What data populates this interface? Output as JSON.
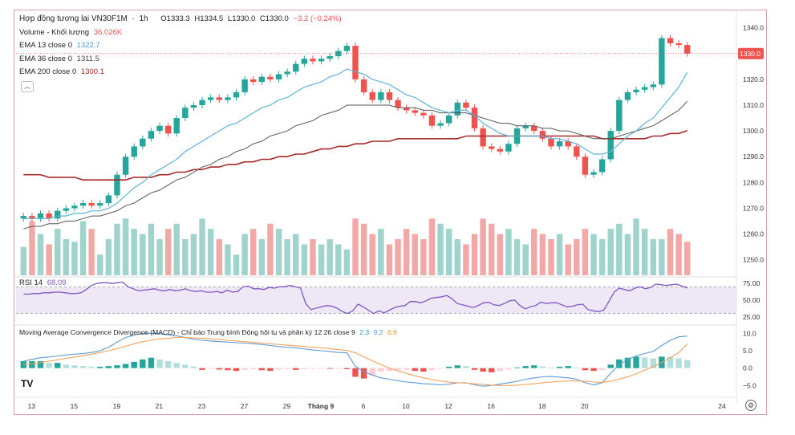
{
  "header": {
    "symbol": "Hợp đồng tương lai VN30F1M",
    "interval": "1h",
    "ohlc": {
      "o": "O1333.3",
      "h": "H1334.5",
      "l": "L1330.0",
      "c": "C1330.0",
      "chg": "−3.2 (−0.24%)"
    }
  },
  "legend": {
    "volume": {
      "label": "Volume - Khối lượng",
      "value": "36.026K"
    },
    "ema13": {
      "label": "EMA 13 close 0",
      "value": "1322.7"
    },
    "ema36": {
      "label": "EMA 36 close 0",
      "value": "1311.5"
    },
    "ema200": {
      "label": "EMA 200 close 0",
      "value": "1300.1"
    },
    "rsi": {
      "label": "RSI 14",
      "value": "68.09"
    },
    "macd": {
      "label": "Moving Average Convergence Divergence (MACD) - Chỉ báo Trung bình Động hội tụ và phân kỳ 12 26 close 9",
      "v1": "2.3",
      "v2": "9.2",
      "v3": "6.9"
    }
  },
  "price_tag": "1330.0",
  "colors": {
    "up": "#26a69a",
    "down": "#ef5350",
    "ema13": "#5fb3d9",
    "ema36": "#555555",
    "ema200": "#a52a2a",
    "rsi": "#7e57c2",
    "macd": "#5b9bd5",
    "signal": "#f4a15a"
  },
  "logo_text": "TV",
  "chart_data": [
    {
      "type": "candlestick",
      "y_ticks": [
        "1340.0",
        "1330.0",
        "1320.0",
        "1310.0",
        "1300.0",
        "1290.0",
        "1280.0",
        "1270.0",
        "1260.0",
        "1250.0"
      ],
      "ylim": [
        1244,
        1343
      ],
      "x_ticks": [
        "13",
        "15",
        "19",
        "21",
        "23",
        "27",
        "29",
        "Tháng 9",
        "6",
        "10",
        "12",
        "16",
        "18",
        "20",
        "24"
      ],
      "closes": [
        1267,
        1266,
        1268,
        1266,
        1269,
        1270,
        1271,
        1272,
        1271,
        1272,
        1275,
        1283,
        1290,
        1294,
        1297,
        1300,
        1302,
        1299,
        1305,
        1309,
        1310,
        1312,
        1313,
        1312,
        1313,
        1315,
        1320,
        1319,
        1321,
        1320,
        1322,
        1323,
        1326,
        1328,
        1327,
        1328,
        1329,
        1331,
        1333,
        1320,
        1315,
        1312,
        1315,
        1312,
        1309,
        1308,
        1307,
        1306,
        1302,
        1303,
        1306,
        1311,
        1309,
        1301,
        1294,
        1293,
        1292,
        1295,
        1301,
        1302,
        1300,
        1297,
        1294,
        1296,
        1294,
        1290,
        1283,
        1284,
        1289,
        1300,
        1312,
        1315,
        1316,
        1317,
        1318,
        1336,
        1334,
        1333.3,
        1330
      ],
      "volume_ylim": [
        1244,
        1270
      ],
      "volumes": [
        1255,
        1265,
        1260,
        1256,
        1262,
        1258,
        1257,
        1265,
        1262,
        1252,
        1258,
        1264,
        1266,
        1262,
        1260,
        1264,
        1258,
        1262,
        1264,
        1258,
        1260,
        1266,
        1262,
        1258,
        1256,
        1252,
        1260,
        1262,
        1258,
        1264,
        1262,
        1258,
        1260,
        1256,
        1258,
        1256,
        1258,
        1256,
        1254,
        1266,
        1264,
        1260,
        1262,
        1256,
        1258,
        1262,
        1260,
        1258,
        1266,
        1264,
        1262,
        1258,
        1256,
        1260,
        1266,
        1264,
        1260,
        1262,
        1258,
        1256,
        1262,
        1260,
        1258,
        1260,
        1256,
        1258,
        1262,
        1260,
        1258,
        1262,
        1264,
        1260,
        1266,
        1262,
        1258,
        1258,
        1262,
        1260,
        1257
      ],
      "ema13": [
        1266,
        1266,
        1266,
        1266,
        1267,
        1267,
        1268,
        1268,
        1269,
        1269,
        1270,
        1272,
        1275,
        1278,
        1280,
        1283,
        1285,
        1287,
        1289,
        1292,
        1294,
        1296,
        1298,
        1300,
        1302,
        1303,
        1305,
        1307,
        1309,
        1310,
        1312,
        1313,
        1315,
        1317,
        1318,
        1319,
        1321,
        1322,
        1324,
        1323,
        1322,
        1320,
        1319,
        1318,
        1316,
        1314,
        1313,
        1311,
        1309,
        1308,
        1307,
        1308,
        1308,
        1306,
        1303,
        1301,
        1299,
        1298,
        1298,
        1298,
        1298,
        1298,
        1297,
        1297,
        1296,
        1295,
        1293,
        1291,
        1291,
        1292,
        1295,
        1298,
        1300,
        1303,
        1305,
        1309,
        1313,
        1317,
        1322.7
      ],
      "ema36": [
        1262,
        1263,
        1263,
        1264,
        1264,
        1265,
        1265,
        1266,
        1267,
        1267,
        1268,
        1269,
        1271,
        1272,
        1274,
        1276,
        1277,
        1279,
        1281,
        1282,
        1284,
        1286,
        1287,
        1289,
        1290,
        1292,
        1293,
        1295,
        1296,
        1298,
        1299,
        1300,
        1302,
        1303,
        1304,
        1306,
        1307,
        1308,
        1310,
        1310,
        1310,
        1310,
        1310,
        1310,
        1309,
        1309,
        1309,
        1308,
        1308,
        1307,
        1307,
        1307,
        1307,
        1306,
        1305,
        1304,
        1303,
        1303,
        1302,
        1302,
        1302,
        1301,
        1301,
        1300,
        1300,
        1299,
        1298,
        1297,
        1297,
        1297,
        1298,
        1299,
        1300,
        1301,
        1302,
        1304,
        1306,
        1308,
        1311.5
      ],
      "ema200": [
        1283,
        1283,
        1283,
        1282,
        1282,
        1282,
        1282,
        1281,
        1281,
        1281,
        1281,
        1281,
        1281,
        1282,
        1282,
        1282,
        1283,
        1283,
        1284,
        1284,
        1285,
        1285,
        1286,
        1286,
        1287,
        1287,
        1288,
        1288,
        1289,
        1289,
        1290,
        1290,
        1291,
        1291,
        1292,
        1293,
        1293,
        1294,
        1294,
        1295,
        1295,
        1296,
        1296,
        1296,
        1297,
        1297,
        1297,
        1297,
        1297,
        1297,
        1297,
        1297,
        1298,
        1298,
        1298,
        1298,
        1298,
        1298,
        1298,
        1298,
        1298,
        1298,
        1298,
        1298,
        1298,
        1298,
        1298,
        1298,
        1297,
        1297,
        1297,
        1297,
        1297,
        1297,
        1298,
        1298,
        1299,
        1299,
        1300.1
      ]
    },
    {
      "type": "line",
      "name": "RSI 14",
      "ylim": [
        20,
        80
      ],
      "y_ticks": [
        "75.00",
        "50.00",
        "25.00"
      ],
      "band": [
        30,
        70
      ],
      "values": [
        59,
        59,
        60,
        60,
        61,
        61,
        62,
        62,
        61,
        60,
        60,
        61,
        66,
        72,
        75,
        76,
        76,
        75,
        76,
        77,
        70,
        67,
        64,
        65,
        66,
        67,
        65,
        64,
        66,
        64,
        65,
        67,
        64,
        63,
        64,
        62,
        62,
        63,
        61,
        65,
        62,
        63,
        70,
        71,
        67,
        67,
        66,
        69,
        68,
        70,
        70,
        72,
        70,
        68,
        45,
        36,
        38,
        40,
        42,
        41,
        38,
        33,
        30,
        34,
        44,
        40,
        35,
        30,
        34,
        31,
        35,
        39,
        41,
        42,
        48,
        48,
        46,
        49,
        53,
        54,
        55,
        57,
        52,
        45,
        43,
        41,
        39,
        42,
        46,
        47,
        43,
        42,
        45,
        49,
        50,
        42,
        37,
        40,
        42,
        47,
        45,
        46,
        46,
        43,
        40,
        41,
        43,
        44,
        36,
        34,
        33,
        35,
        48,
        62,
        68,
        66,
        64,
        68,
        70,
        67,
        69,
        74,
        73,
        72,
        73,
        74,
        71,
        68.09
      ]
    },
    {
      "type": "macd",
      "ylim": [
        -7,
        11
      ],
      "y_ticks": [
        "10.0",
        "5.0",
        "0.0",
        "−5.0"
      ],
      "hist": [
        2,
        2,
        2,
        1.5,
        1.5,
        1,
        0.8,
        0.6,
        0.4,
        0.4,
        0.6,
        0.8,
        1.2,
        1.8,
        2.5,
        3,
        2.5,
        2,
        1.5,
        1,
        0.5,
        -0.5,
        -0.2,
        -0.4,
        -0.6,
        -0.8,
        -0.5,
        -0.3,
        -0.6,
        -0.8,
        -0.4,
        -0.3,
        -0.5,
        -0.3,
        -0.2,
        -0.1,
        -0.2,
        -0.1,
        -0.3,
        -2.5,
        -3,
        -2,
        -1,
        -0.8,
        -0.6,
        -0.5,
        -0.8,
        -1,
        -0.6,
        -0.2,
        0.4,
        0.8,
        0.6,
        -0.5,
        -1,
        -1.2,
        -0.8,
        -0.4,
        0.2,
        0.6,
        0.8,
        0.5,
        0.2,
        0.4,
        0.6,
        0.2,
        -0.6,
        -0.8,
        -0.5,
        1,
        2.5,
        3,
        3.3,
        3.1,
        2.8,
        3.3,
        3.2,
        2.8,
        2.3
      ],
      "macd": [
        2,
        2.5,
        3,
        3.2,
        3.5,
        3.8,
        4,
        4.2,
        4.5,
        5,
        6,
        7.5,
        8.8,
        9.5,
        10,
        10,
        9.9,
        9.6,
        9.3,
        8.8,
        8.3,
        8,
        7.8,
        7.6,
        7.5,
        7.3,
        7.2,
        7,
        6.8,
        6.5,
        6.2,
        6,
        5.8,
        5.5,
        5.2,
        5,
        4.8,
        4.5,
        4.4,
        0.5,
        -1,
        -2,
        -2.8,
        -3.2,
        -3.6,
        -4,
        -4.2,
        -4.5,
        -4.6,
        -4.8,
        -4.6,
        -4.2,
        -4.2,
        -4.8,
        -5.2,
        -5,
        -4.6,
        -4.2,
        -3.8,
        -3.2,
        -2.8,
        -2.5,
        -2.4,
        -2.6,
        -2.8,
        -3.2,
        -4.2,
        -4.8,
        -4.2,
        -1.5,
        1,
        2.5,
        3.5,
        4.2,
        4.8,
        6.5,
        8,
        9,
        9.2
      ],
      "signal": [
        1,
        1.2,
        1.6,
        2,
        2.4,
        2.8,
        3.2,
        3.6,
        4,
        4.5,
        5,
        5.6,
        6.3,
        7,
        7.6,
        8,
        8.4,
        8.6,
        8.8,
        8.8,
        8.7,
        8.6,
        8.4,
        8.2,
        8,
        7.8,
        7.6,
        7.4,
        7.2,
        7,
        6.8,
        6.6,
        6.4,
        6.2,
        6,
        5.8,
        5.6,
        5.3,
        5.1,
        4.4,
        3.2,
        2.1,
        1,
        0,
        -0.8,
        -1.5,
        -2.2,
        -2.8,
        -3.3,
        -3.7,
        -4,
        -4.2,
        -4.3,
        -4.5,
        -4.7,
        -4.9,
        -5,
        -5,
        -4.9,
        -4.7,
        -4.5,
        -4.2,
        -4,
        -3.8,
        -3.7,
        -3.7,
        -3.8,
        -4,
        -4.1,
        -3.8,
        -3.2,
        -2.5,
        -1.6,
        -0.6,
        0.4,
        1.6,
        3,
        4.5,
        6.9
      ]
    }
  ]
}
